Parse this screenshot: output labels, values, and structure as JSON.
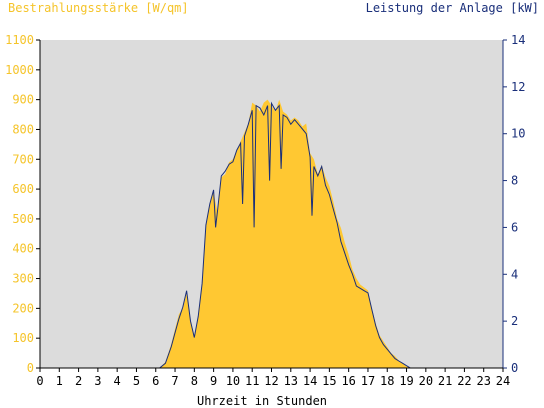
{
  "chart_data": {
    "type": "area",
    "title_left": "Bestrahlungsstärke [W/qm]",
    "title_right": "Leistung der Anlage [kW]",
    "xlabel": "Uhrzeit in Stunden",
    "xlim": [
      0,
      24
    ],
    "x_ticks": [
      0,
      1,
      2,
      3,
      4,
      5,
      6,
      7,
      8,
      9,
      10,
      11,
      12,
      13,
      14,
      15,
      16,
      17,
      18,
      19,
      20,
      21,
      22,
      23,
      24
    ],
    "ylim_left": [
      0,
      1100
    ],
    "y_ticks_left": [
      0,
      100,
      200,
      300,
      400,
      500,
      600,
      700,
      800,
      900,
      1000,
      1100
    ],
    "ylim_right": [
      0,
      14
    ],
    "y_ticks_right": [
      0,
      2,
      4,
      6,
      8,
      10,
      12,
      14
    ],
    "grid": false,
    "colors": {
      "plot_background": "#dcdcdc",
      "irradiance_fill": "#ffc832",
      "power_line": "#1a2f7a",
      "left_axis_text": "#f5c42a",
      "right_axis_text": "#1a2f7a"
    },
    "series": [
      {
        "axis": "left",
        "style": "area",
        "x": [
          0,
          6.2,
          6.5,
          6.8,
          7.0,
          7.2,
          7.4,
          7.6,
          7.8,
          8.0,
          8.2,
          8.4,
          8.6,
          8.8,
          9.0,
          9.2,
          9.4,
          9.6,
          9.8,
          10.0,
          10.2,
          10.4,
          10.6,
          10.8,
          11.0,
          11.2,
          11.4,
          11.6,
          11.8,
          12.0,
          12.2,
          12.4,
          12.6,
          12.8,
          13.0,
          13.2,
          13.4,
          13.6,
          13.8,
          14.0,
          14.2,
          14.4,
          14.6,
          14.8,
          15.0,
          15.2,
          15.4,
          15.6,
          15.8,
          16.0,
          16.2,
          16.4,
          16.6,
          16.8,
          17.0,
          17.2,
          17.4,
          17.6,
          17.8,
          18.0,
          18.2,
          18.4,
          18.6,
          18.8,
          19.0,
          19.2,
          24
        ],
        "values": [
          0,
          0,
          20,
          80,
          130,
          180,
          200,
          250,
          160,
          110,
          170,
          280,
          470,
          550,
          590,
          520,
          640,
          650,
          690,
          700,
          730,
          760,
          790,
          820,
          890,
          880,
          860,
          890,
          900,
          880,
          860,
          900,
          860,
          850,
          830,
          840,
          830,
          810,
          820,
          720,
          700,
          650,
          680,
          640,
          610,
          560,
          500,
          470,
          420,
          380,
          330,
          300,
          280,
          270,
          260,
          200,
          150,
          110,
          90,
          70,
          50,
          40,
          25,
          15,
          5,
          0,
          0
        ]
      },
      {
        "axis": "right",
        "style": "line",
        "x": [
          0,
          6.2,
          6.5,
          6.8,
          7.0,
          7.2,
          7.4,
          7.6,
          7.8,
          8.0,
          8.2,
          8.4,
          8.6,
          8.8,
          9.0,
          9.1,
          9.2,
          9.4,
          9.6,
          9.8,
          10.0,
          10.2,
          10.4,
          10.5,
          10.6,
          10.8,
          11.0,
          11.1,
          11.2,
          11.4,
          11.6,
          11.8,
          11.9,
          12.0,
          12.2,
          12.4,
          12.5,
          12.6,
          12.8,
          13.0,
          13.2,
          13.4,
          13.6,
          13.8,
          14.0,
          14.1,
          14.2,
          14.4,
          14.6,
          14.8,
          15.0,
          15.2,
          15.4,
          15.6,
          15.8,
          16.0,
          16.2,
          16.4,
          16.6,
          16.8,
          17.0,
          17.2,
          17.4,
          17.6,
          17.8,
          18.0,
          18.2,
          18.4,
          18.6,
          18.8,
          19.0,
          19.2,
          24
        ],
        "values": [
          0,
          0,
          0.2,
          0.9,
          1.5,
          2.1,
          2.6,
          3.3,
          2.0,
          1.3,
          2.2,
          3.6,
          6.1,
          7.0,
          7.6,
          6.0,
          6.7,
          8.2,
          8.4,
          8.7,
          8.8,
          9.3,
          9.6,
          7.0,
          9.9,
          10.4,
          11.0,
          6.0,
          11.2,
          11.1,
          10.8,
          11.2,
          8.0,
          11.3,
          11.0,
          11.2,
          8.5,
          10.8,
          10.7,
          10.4,
          10.6,
          10.4,
          10.2,
          10.0,
          9.0,
          6.5,
          8.6,
          8.2,
          8.6,
          7.8,
          7.4,
          6.8,
          6.2,
          5.4,
          4.9,
          4.4,
          4.0,
          3.5,
          3.4,
          3.3,
          3.2,
          2.5,
          1.8,
          1.3,
          1.0,
          0.8,
          0.6,
          0.4,
          0.3,
          0.2,
          0.1,
          0,
          0
        ]
      }
    ]
  }
}
